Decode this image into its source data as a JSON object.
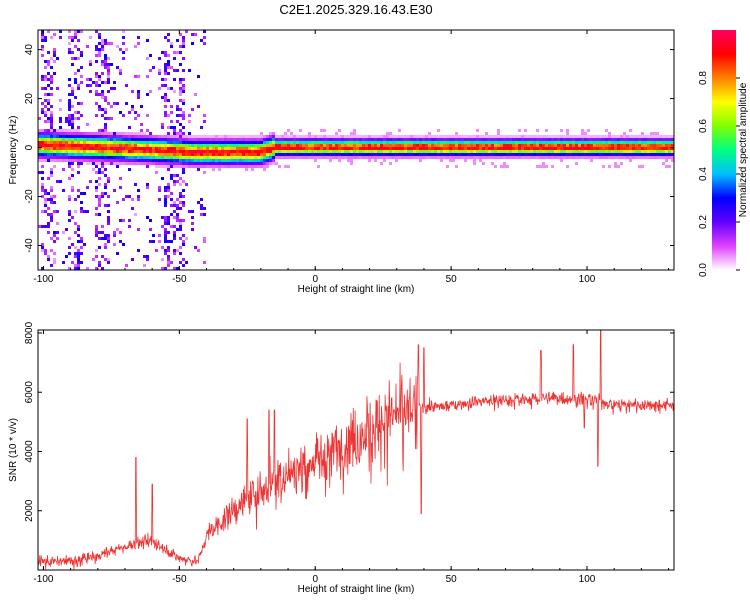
{
  "title": "C2E1.2025.329.16.43.E30",
  "chart_data": [
    {
      "type": "heatmap",
      "xlabel": "Height of straight line (km)",
      "ylabel": "Frequency (Hz)",
      "xlim": [
        -102,
        132
      ],
      "ylim": [
        -50,
        48
      ],
      "xticks": [
        -100,
        -50,
        0,
        50,
        100
      ],
      "yticks": [
        -40,
        -20,
        0,
        20,
        40
      ],
      "ridge_frequency": {
        "x": [
          -100,
          -80,
          -60,
          -45,
          -20,
          -15,
          0,
          50,
          100,
          132
        ],
        "y": [
          1,
          0,
          -1,
          -2,
          -2,
          0,
          0,
          0,
          0,
          0
        ]
      },
      "colorbar": {
        "label": "Normalized spectral amplitude",
        "ticks": [
          0.0,
          0.2,
          0.4,
          0.6,
          0.8
        ],
        "tick_labels": [
          "0.0",
          "0.2",
          "0.4",
          "0.6",
          "0.8"
        ],
        "range": [
          0,
          1
        ],
        "colormap": [
          "#ffffff",
          "#e040ff",
          "#6000ff",
          "#0000ff",
          "#00c0ff",
          "#00ff80",
          "#80ff00",
          "#ffff00",
          "#ff8000",
          "#ff0000",
          "#ff0060"
        ]
      }
    },
    {
      "type": "line",
      "xlabel": "Height of straight line (km)",
      "ylabel": "SNR (10 * v/v)",
      "xlim": [
        -102,
        132
      ],
      "ylim": [
        0,
        8100
      ],
      "xticks": [
        -100,
        -50,
        0,
        50,
        100
      ],
      "yticks": [
        2000,
        4000,
        6000,
        8000
      ],
      "line_color": "#ee3333",
      "trend": {
        "x": [
          -102,
          -90,
          -80,
          -70,
          -60,
          -50,
          -43,
          -40,
          -30,
          -20,
          -10,
          0,
          10,
          20,
          30,
          38,
          45,
          60,
          80,
          100,
          104,
          110,
          132
        ],
        "y": [
          300,
          300,
          500,
          800,
          1000,
          400,
          300,
          1200,
          2000,
          2700,
          3300,
          3700,
          4200,
          4800,
          5300,
          5500,
          5500,
          5700,
          5800,
          5800,
          5700,
          5600,
          5600
        ]
      },
      "spikes": [
        {
          "x": -66,
          "y": 3800
        },
        {
          "x": -60,
          "y": 2900
        },
        {
          "x": -25,
          "y": 5100
        },
        {
          "x": -17,
          "y": 5400
        },
        {
          "x": -15,
          "y": 5400
        },
        {
          "x": 38,
          "y": 7600
        },
        {
          "x": 39,
          "y": 1900
        },
        {
          "x": 40,
          "y": 7500
        },
        {
          "x": 83,
          "y": 7400
        },
        {
          "x": 95,
          "y": 7600
        },
        {
          "x": 99,
          "y": 4800
        },
        {
          "x": 105,
          "y": 8100
        },
        {
          "x": 104,
          "y": 3500
        }
      ]
    }
  ]
}
